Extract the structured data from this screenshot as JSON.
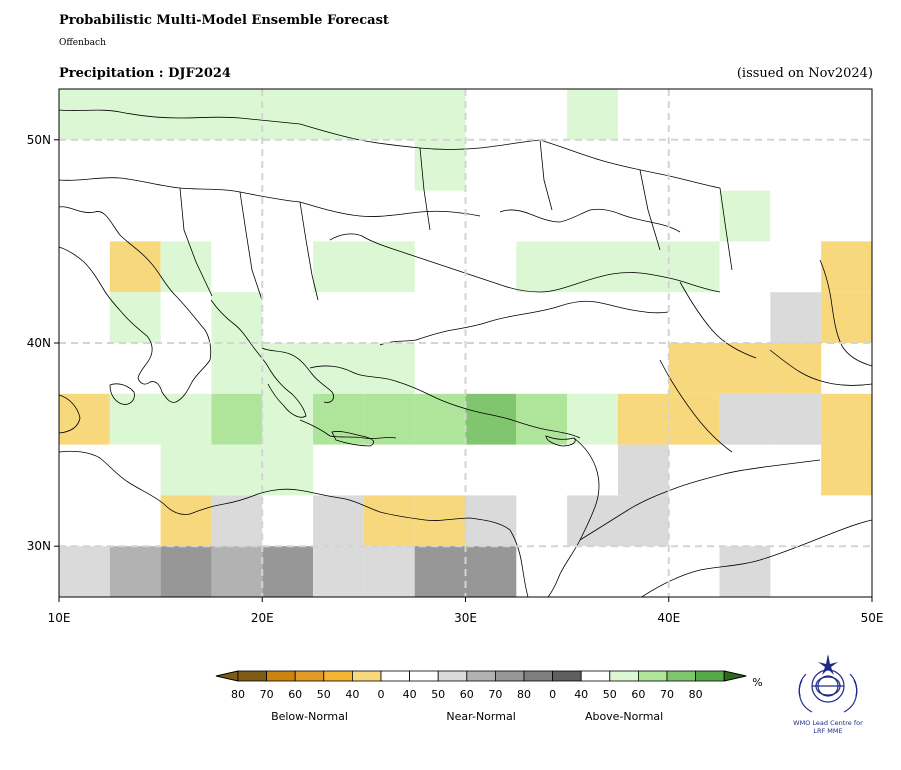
{
  "header": {
    "title": "Probabilistic Multi-Model Ensemble Forecast",
    "source": "Offenbach",
    "subtitle": "Precipitation : DJF2024",
    "issued": "(issued on Nov2024)"
  },
  "map": {
    "projection": "PlateCarree",
    "lon_range": [
      10,
      50
    ],
    "lat_range": [
      27.5,
      52.5
    ],
    "grid_spacing_deg": 2.5,
    "gridlines": "dashed, light gray, every 10 degrees",
    "x_ticks": [
      "10E",
      "20E",
      "30E",
      "40E",
      "50E"
    ],
    "y_ticks": [
      "50N",
      "40N",
      "30N"
    ],
    "cells": [
      {
        "lon": 10,
        "lat": 50,
        "cat": "above",
        "p": 40
      },
      {
        "lon": 12.5,
        "lat": 50,
        "cat": "above",
        "p": 40
      },
      {
        "lon": 15,
        "lat": 50,
        "cat": "above",
        "p": 40
      },
      {
        "lon": 17.5,
        "lat": 50,
        "cat": "above",
        "p": 40
      },
      {
        "lon": 20,
        "lat": 50,
        "cat": "above",
        "p": 40
      },
      {
        "lon": 22.5,
        "lat": 50,
        "cat": "above",
        "p": 40
      },
      {
        "lon": 25,
        "lat": 50,
        "cat": "above",
        "p": 40
      },
      {
        "lon": 27.5,
        "lat": 50,
        "cat": "above",
        "p": 40
      },
      {
        "lon": 35,
        "lat": 50,
        "cat": "above",
        "p": 40
      },
      {
        "lon": 27.5,
        "lat": 47.5,
        "cat": "above",
        "p": 40
      },
      {
        "lon": 42.5,
        "lat": 45,
        "cat": "above",
        "p": 40
      },
      {
        "lon": 12.5,
        "lat": 42.5,
        "cat": "below",
        "p": 40
      },
      {
        "lon": 15,
        "lat": 42.5,
        "cat": "above",
        "p": 40
      },
      {
        "lon": 22.5,
        "lat": 42.5,
        "cat": "above",
        "p": 40
      },
      {
        "lon": 25,
        "lat": 42.5,
        "cat": "above",
        "p": 40
      },
      {
        "lon": 32.5,
        "lat": 42.5,
        "cat": "above",
        "p": 40
      },
      {
        "lon": 35,
        "lat": 42.5,
        "cat": "above",
        "p": 40
      },
      {
        "lon": 37.5,
        "lat": 42.5,
        "cat": "above",
        "p": 40
      },
      {
        "lon": 40,
        "lat": 42.5,
        "cat": "above",
        "p": 40
      },
      {
        "lon": 47.5,
        "lat": 42.5,
        "cat": "below",
        "p": 40
      },
      {
        "lon": 12.5,
        "lat": 40,
        "cat": "above",
        "p": 40
      },
      {
        "lon": 17.5,
        "lat": 40,
        "cat": "above",
        "p": 40
      },
      {
        "lon": 45,
        "lat": 40,
        "cat": "near",
        "p": 40
      },
      {
        "lon": 47.5,
        "lat": 40,
        "cat": "below",
        "p": 40
      },
      {
        "lon": 17.5,
        "lat": 37.5,
        "cat": "above",
        "p": 40
      },
      {
        "lon": 20,
        "lat": 37.5,
        "cat": "above",
        "p": 40
      },
      {
        "lon": 22.5,
        "lat": 37.5,
        "cat": "above",
        "p": 40
      },
      {
        "lon": 25,
        "lat": 37.5,
        "cat": "above",
        "p": 40
      },
      {
        "lon": 40,
        "lat": 37.5,
        "cat": "below",
        "p": 40
      },
      {
        "lon": 42.5,
        "lat": 37.5,
        "cat": "below",
        "p": 40
      },
      {
        "lon": 45,
        "lat": 37.5,
        "cat": "below",
        "p": 40
      },
      {
        "lon": 10,
        "lat": 35,
        "cat": "below",
        "p": 40
      },
      {
        "lon": 12.5,
        "lat": 35,
        "cat": "above",
        "p": 40
      },
      {
        "lon": 15,
        "lat": 35,
        "cat": "above",
        "p": 40
      },
      {
        "lon": 17.5,
        "lat": 35,
        "cat": "above",
        "p": 50
      },
      {
        "lon": 20,
        "lat": 35,
        "cat": "above",
        "p": 40
      },
      {
        "lon": 22.5,
        "lat": 35,
        "cat": "above",
        "p": 50
      },
      {
        "lon": 25,
        "lat": 35,
        "cat": "above",
        "p": 50
      },
      {
        "lon": 27.5,
        "lat": 35,
        "cat": "above",
        "p": 50
      },
      {
        "lon": 30,
        "lat": 35,
        "cat": "above",
        "p": 60
      },
      {
        "lon": 32.5,
        "lat": 35,
        "cat": "above",
        "p": 50
      },
      {
        "lon": 35,
        "lat": 35,
        "cat": "above",
        "p": 40
      },
      {
        "lon": 37.5,
        "lat": 35,
        "cat": "below",
        "p": 40
      },
      {
        "lon": 40,
        "lat": 35,
        "cat": "below",
        "p": 40
      },
      {
        "lon": 42.5,
        "lat": 35,
        "cat": "near",
        "p": 40
      },
      {
        "lon": 45,
        "lat": 35,
        "cat": "near",
        "p": 40
      },
      {
        "lon": 47.5,
        "lat": 35,
        "cat": "below",
        "p": 40
      },
      {
        "lon": 15,
        "lat": 32.5,
        "cat": "above",
        "p": 40
      },
      {
        "lon": 17.5,
        "lat": 32.5,
        "cat": "above",
        "p": 40
      },
      {
        "lon": 20,
        "lat": 32.5,
        "cat": "above",
        "p": 40
      },
      {
        "lon": 37.5,
        "lat": 32.5,
        "cat": "near",
        "p": 40
      },
      {
        "lon": 47.5,
        "lat": 32.5,
        "cat": "below",
        "p": 40
      },
      {
        "lon": 15,
        "lat": 30,
        "cat": "below",
        "p": 40
      },
      {
        "lon": 17.5,
        "lat": 30,
        "cat": "near",
        "p": 40
      },
      {
        "lon": 22.5,
        "lat": 30,
        "cat": "near",
        "p": 40
      },
      {
        "lon": 25,
        "lat": 30,
        "cat": "below",
        "p": 40
      },
      {
        "lon": 27.5,
        "lat": 30,
        "cat": "below",
        "p": 40
      },
      {
        "lon": 30,
        "lat": 30,
        "cat": "near",
        "p": 40
      },
      {
        "lon": 35,
        "lat": 30,
        "cat": "near",
        "p": 40
      },
      {
        "lon": 37.5,
        "lat": 30,
        "cat": "near",
        "p": 40
      },
      {
        "lon": 10,
        "lat": 27.5,
        "cat": "near",
        "p": 40
      },
      {
        "lon": 12.5,
        "lat": 27.5,
        "cat": "near",
        "p": 50
      },
      {
        "lon": 15,
        "lat": 27.5,
        "cat": "near",
        "p": 60
      },
      {
        "lon": 17.5,
        "lat": 27.5,
        "cat": "near",
        "p": 50
      },
      {
        "lon": 20,
        "lat": 27.5,
        "cat": "near",
        "p": 60
      },
      {
        "lon": 22.5,
        "lat": 27.5,
        "cat": "near",
        "p": 40
      },
      {
        "lon": 25,
        "lat": 27.5,
        "cat": "near",
        "p": 40
      },
      {
        "lon": 27.5,
        "lat": 27.5,
        "cat": "near",
        "p": 60
      },
      {
        "lon": 30,
        "lat": 27.5,
        "cat": "near",
        "p": 60
      },
      {
        "lon": 42.5,
        "lat": 27.5,
        "cat": "near",
        "p": 40
      }
    ]
  },
  "colors": {
    "below": {
      "40": "#f8d87d",
      "50": "#f3b533",
      "60": "#e09a25",
      "70": "#c9850f",
      "80": "#7e5b16"
    },
    "near": {
      "40": "#dadada",
      "50": "#b2b2b2",
      "60": "#979797",
      "70": "#7e7e7e",
      "80": "#5f5f5f"
    },
    "above": {
      "40": "#dcf7d3",
      "50": "#aee59a",
      "60": "#80c66e",
      "70": "#57a84a",
      "80": "#2e6a1c"
    },
    "gridline": "#d4d4d4",
    "frame": "#000000"
  },
  "legend": {
    "unit": "%",
    "below_ticks": [
      "80",
      "70",
      "60",
      "50",
      "40",
      "0"
    ],
    "near_ticks": [
      "40",
      "50",
      "60",
      "70",
      "80"
    ],
    "above_ticks": [
      "0",
      "40",
      "50",
      "60",
      "70",
      "80"
    ],
    "group_labels": [
      "Below-Normal",
      "Near-Normal",
      "Above-Normal"
    ]
  },
  "logo": {
    "line1": "WMO Lead Centre for",
    "line2": "LRF MME"
  }
}
